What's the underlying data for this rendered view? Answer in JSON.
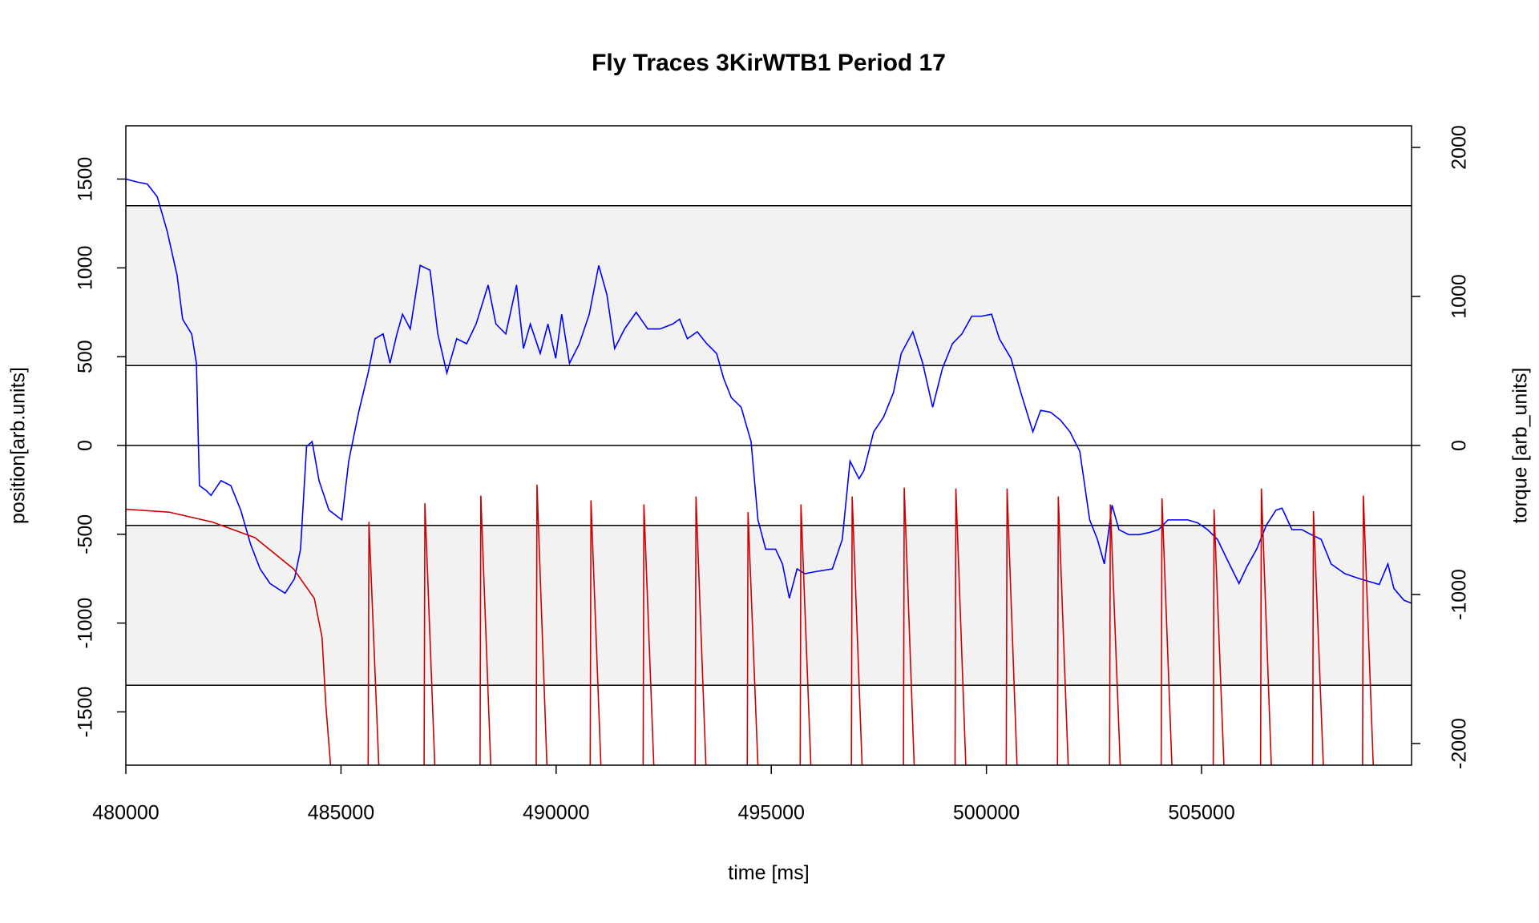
{
  "chart_data": {
    "type": "line",
    "title": "Fly Traces 3KirWTB1 Period 17",
    "xlabel": "time [ms]",
    "ylabel": "position[arb.units]",
    "y2label": "torque [arb_units]",
    "xlim": [
      480000,
      509880
    ],
    "xticks": [
      480000,
      485000,
      490000,
      495000,
      500000,
      505000
    ],
    "ylim": [
      -1800,
      1800
    ],
    "yticks": [
      -1500,
      -1000,
      -500,
      0,
      500,
      1000,
      1500
    ],
    "y2lim": [
      -2145,
      2145
    ],
    "y2ticks": [
      -2000,
      -1000,
      0,
      1000,
      2000
    ],
    "hlines": [
      1350,
      450,
      0,
      -450,
      -1350
    ],
    "bands": [
      [
        450,
        1350
      ],
      [
        -1350,
        -450
      ]
    ],
    "band_color": "#f2f2f2",
    "series": [
      {
        "name": "position",
        "color": "#0000ff",
        "x": [
          480000,
          480270,
          480500,
          480730,
          480960,
          481190,
          481320,
          481530,
          481640,
          481710,
          481870,
          481980,
          482210,
          482440,
          482670,
          482900,
          483120,
          483350,
          483700,
          483920,
          484060,
          484200,
          484330,
          484490,
          484720,
          485020,
          485180,
          485410,
          485630,
          485790,
          485980,
          486140,
          486300,
          486430,
          486610,
          486840,
          487070,
          487250,
          487460,
          487690,
          487920,
          488140,
          488420,
          488600,
          488830,
          489080,
          489240,
          489400,
          489630,
          489810,
          489990,
          490130,
          490310,
          490540,
          490770,
          490990,
          491180,
          491360,
          491590,
          491860,
          492130,
          492410,
          492710,
          492870,
          493050,
          493280,
          493500,
          493730,
          493890,
          494070,
          494300,
          494530,
          494690,
          494870,
          495100,
          495260,
          495420,
          495600,
          495780,
          496010,
          496420,
          496650,
          496830,
          497040,
          497150,
          497380,
          497610,
          497840,
          498020,
          498290,
          498520,
          498750,
          498980,
          499210,
          499430,
          499660,
          499890,
          500120,
          500300,
          500570,
          500800,
          501080,
          501260,
          501490,
          501720,
          501940,
          502170,
          502400,
          502580,
          502740,
          502920,
          503080,
          503310,
          503540,
          503770,
          504000,
          504220,
          504450,
          504680,
          504910,
          505140,
          505370,
          505590,
          505870,
          506050,
          506280,
          506510,
          506730,
          506870,
          507100,
          507330,
          507550,
          507780,
          508010,
          508330,
          508670,
          509130,
          509330,
          509470,
          509700,
          509880
        ],
        "values": [
          1500,
          1483,
          1472,
          1400,
          1207,
          959,
          711,
          628,
          463,
          -226,
          -254,
          -281,
          -198,
          -226,
          -364,
          -557,
          -695,
          -777,
          -832,
          -750,
          -584,
          -6,
          22,
          -198,
          -364,
          -419,
          -88,
          187,
          408,
          601,
          628,
          463,
          628,
          739,
          656,
          1014,
          987,
          628,
          408,
          601,
          573,
          684,
          904,
          684,
          628,
          904,
          546,
          684,
          518,
          684,
          491,
          739,
          463,
          573,
          739,
          1014,
          849,
          546,
          656,
          750,
          656,
          656,
          684,
          711,
          601,
          640,
          573,
          518,
          380,
          270,
          215,
          22,
          -419,
          -584,
          -584,
          -667,
          -860,
          -695,
          -722,
          -711,
          -695,
          -529,
          -88,
          -187,
          -143,
          77,
          160,
          298,
          518,
          640,
          463,
          215,
          436,
          573,
          628,
          728,
          728,
          739,
          601,
          491,
          298,
          77,
          198,
          187,
          143,
          77,
          -33,
          -419,
          -529,
          -667,
          -336,
          -474,
          -502,
          -502,
          -491,
          -474,
          -419,
          -419,
          -419,
          -436,
          -474,
          -529,
          -640,
          -777,
          -684,
          -584,
          -447,
          -364,
          -353,
          -474,
          -474,
          -502,
          -529,
          -667,
          -722,
          -750,
          -783,
          -667,
          -805,
          -871,
          -888
        ]
      },
      {
        "name": "torque",
        "color": "#cc0000",
        "axis": "y2",
        "x": [
          480000,
          481000,
          482000,
          483000,
          483900,
          484380,
          484560,
          484650,
          484800,
          484900,
          485630,
          485650,
          485900,
          485930,
          486930,
          486950,
          487200,
          487230,
          488230,
          488250,
          488500,
          488530,
          489535,
          489555,
          489805,
          489835,
          490790,
          490810,
          491060,
          491090,
          492020,
          492040,
          492290,
          492320,
          493230,
          493250,
          493500,
          493530,
          494440,
          494460,
          494710,
          494740,
          495670,
          495690,
          495940,
          495970,
          496860,
          496880,
          497130,
          497160,
          498070,
          498090,
          498340,
          498370,
          499270,
          499290,
          499540,
          499570,
          500460,
          500480,
          500730,
          500760,
          501650,
          501670,
          501920,
          501950,
          502860,
          502880,
          503130,
          503160,
          504060,
          504080,
          504330,
          504360,
          505270,
          505290,
          505540,
          505570,
          506370,
          506390,
          506640,
          506670,
          507580,
          507600,
          507850,
          507880,
          508740,
          508760,
          509010
        ],
        "values": [
          -428,
          -447,
          -513,
          -618,
          -829,
          -1026,
          -1289,
          -1750,
          -2300,
          null,
          -2300,
          -513,
          -2300,
          null,
          -2300,
          -388,
          -2300,
          null,
          -2300,
          -336,
          -2300,
          null,
          -2300,
          -263,
          -2300,
          null,
          -2300,
          -368,
          -2300,
          null,
          -2300,
          -395,
          -2300,
          null,
          -2300,
          -342,
          -2300,
          null,
          -2300,
          -447,
          -2300,
          null,
          -2300,
          -395,
          -2300,
          null,
          -2300,
          -342,
          -2300,
          null,
          -2300,
          -283,
          -2300,
          null,
          -2300,
          -289,
          -2300,
          null,
          -2300,
          -289,
          -2300,
          null,
          -2300,
          -342,
          -2300,
          null,
          -2300,
          -395,
          -2300,
          null,
          -2300,
          -355,
          -2300,
          null,
          -2300,
          -428,
          -2300,
          null,
          -2300,
          -289,
          -2300,
          null,
          -2300,
          -441,
          -2300,
          null,
          -2300,
          -336,
          -2300
        ]
      }
    ]
  }
}
